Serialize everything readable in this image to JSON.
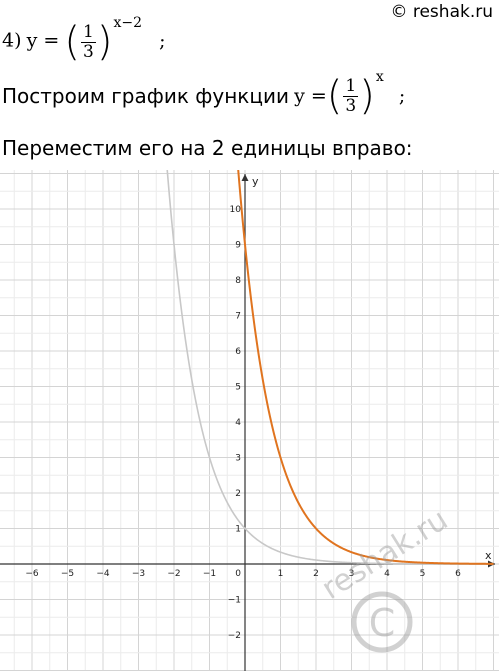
{
  "header": {
    "copyright": "© reshak.ru"
  },
  "problem": {
    "number": "4)",
    "lhs": "y =",
    "frac_num": "1",
    "frac_den": "3",
    "exponent": "x−2",
    "semicolon": ";"
  },
  "step1": {
    "text": "Построим график функции",
    "lhs": "y =",
    "frac_num": "1",
    "frac_den": "3",
    "exponent": "x",
    "semicolon": ";"
  },
  "step2": {
    "text": "Переместим его на 2 единицы вправо:"
  },
  "watermark": {
    "text": "reshak.ru"
  },
  "chart_data": {
    "type": "line",
    "xlabel": "x",
    "ylabel": "y",
    "xlim": [
      -7,
      7
    ],
    "ylim": [
      -3,
      11
    ],
    "x_ticks": [
      -6,
      -5,
      -4,
      -3,
      -2,
      -1,
      0,
      1,
      2,
      3,
      4,
      5,
      6
    ],
    "y_ticks": [
      -2,
      -1,
      1,
      2,
      3,
      4,
      5,
      6,
      7,
      8,
      9,
      10
    ],
    "grid": true,
    "series": [
      {
        "formula": "(1/3)^x",
        "base": 0.3333333,
        "shift": 0,
        "color": "#c8c8c8"
      },
      {
        "formula": "(1/3)^(x-2)",
        "base": 0.3333333,
        "shift": 2,
        "color": "#e0741f"
      }
    ]
  }
}
